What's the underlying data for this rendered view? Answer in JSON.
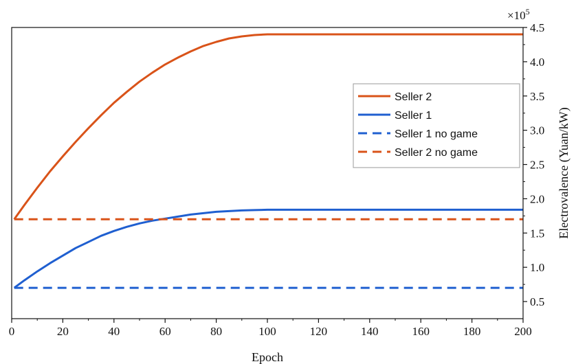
{
  "chart_data": {
    "type": "line",
    "xlabel": "Epoch",
    "ylabel": "Electrovalence (Yuan/kW)",
    "y_multiplier_label": "×10",
    "y_multiplier_exp": "5",
    "xlim": [
      0,
      200
    ],
    "ylim": [
      0.25,
      4.5
    ],
    "x_ticks": [
      0,
      20,
      40,
      60,
      80,
      100,
      120,
      140,
      160,
      180,
      200
    ],
    "x_tick_labels": [
      "0",
      "20",
      "40",
      "60",
      "80",
      "100",
      "120",
      "140",
      "160",
      "180",
      "200"
    ],
    "y_ticks": [
      0.5,
      1.0,
      1.5,
      2.0,
      2.5,
      3.0,
      3.5,
      4.0,
      4.5
    ],
    "y_tick_labels": [
      "0.5",
      "1.0",
      "1.5",
      "2.0",
      "2.5",
      "3.0",
      "3.5",
      "4.0",
      "4.5"
    ],
    "y_axis_side": "right",
    "grid": false,
    "legend_position": "right",
    "series": [
      {
        "name": "Seller 2",
        "color": "#D95319",
        "style": "solid",
        "x": [
          1,
          5,
          10,
          15,
          20,
          25,
          30,
          35,
          40,
          45,
          50,
          55,
          60,
          65,
          70,
          75,
          80,
          85,
          90,
          95,
          100,
          105,
          110,
          120,
          140,
          160,
          180,
          200
        ],
        "y": [
          1.7,
          1.91,
          2.16,
          2.4,
          2.62,
          2.83,
          3.03,
          3.22,
          3.4,
          3.56,
          3.71,
          3.84,
          3.96,
          4.06,
          4.15,
          4.23,
          4.29,
          4.34,
          4.37,
          4.39,
          4.4,
          4.4,
          4.4,
          4.4,
          4.4,
          4.4,
          4.4,
          4.4
        ]
      },
      {
        "name": "Seller 1",
        "color": "#1F5FD0",
        "style": "solid",
        "x": [
          1,
          5,
          10,
          15,
          20,
          25,
          30,
          35,
          40,
          45,
          50,
          55,
          60,
          65,
          70,
          75,
          80,
          85,
          90,
          95,
          100,
          105,
          110,
          120,
          140,
          160,
          180,
          200
        ],
        "y": [
          0.7,
          0.81,
          0.94,
          1.06,
          1.17,
          1.28,
          1.37,
          1.46,
          1.53,
          1.59,
          1.64,
          1.68,
          1.71,
          1.74,
          1.77,
          1.79,
          1.81,
          1.82,
          1.83,
          1.835,
          1.84,
          1.84,
          1.84,
          1.84,
          1.84,
          1.84,
          1.84,
          1.84
        ]
      },
      {
        "name": "Seller 1 no game",
        "color": "#1F5FD0",
        "style": "dashed",
        "x": [
          1,
          200
        ],
        "y": [
          0.7,
          0.7
        ]
      },
      {
        "name": "Seller 2 no game",
        "color": "#D95319",
        "style": "dashed",
        "x": [
          1,
          200
        ],
        "y": [
          1.7,
          1.7
        ]
      }
    ]
  }
}
